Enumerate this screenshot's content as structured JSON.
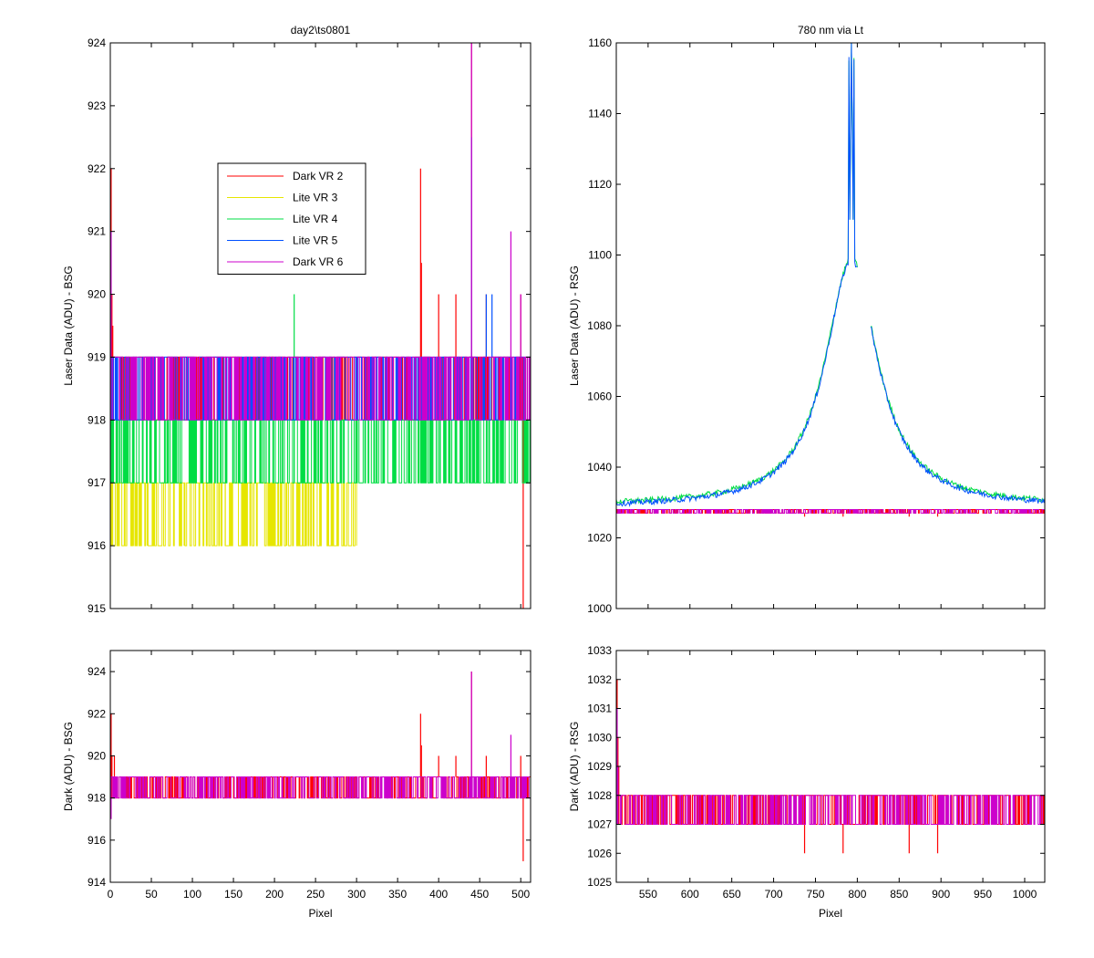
{
  "chart_data": [
    {
      "type": "line",
      "title": "day2\\ts0801",
      "ylabel": "Laser Data (ADU) - BSG",
      "xlabel": "",
      "xlim": [
        0,
        512
      ],
      "ylim": [
        915,
        924
      ],
      "xticks": [
        0,
        50,
        100,
        150,
        200,
        250,
        300,
        350,
        400,
        450,
        500
      ],
      "yticks": [
        915,
        916,
        917,
        918,
        919,
        920,
        921,
        922,
        923,
        924
      ],
      "show_xticklabels": false,
      "legend": {
        "placement": "upper-center",
        "entries": [
          {
            "label": "Dark VR 2",
            "color": "#ff0000"
          },
          {
            "label": "Lite VR 3",
            "color": "#e6e600"
          },
          {
            "label": "Lite VR 4",
            "color": "#00dd44"
          },
          {
            "label": "Lite VR 5",
            "color": "#0050ff"
          },
          {
            "label": "Dark VR 6",
            "color": "#cc00cc"
          }
        ]
      },
      "series": [
        {
          "name": "Dark VR 2",
          "color": "#ff0000",
          "kind": "flat",
          "base": 919,
          "low": 918,
          "high": 919,
          "from": 0,
          "to": 512,
          "spikes": [
            [
              1,
              922
            ],
            [
              2,
              920
            ],
            [
              3,
              919.5
            ],
            [
              378,
              922
            ],
            [
              379,
              920.5
            ],
            [
              400,
              920
            ],
            [
              421,
              920
            ],
            [
              440,
              924
            ],
            [
              458,
              920
            ],
            [
              500,
              920
            ],
            [
              503,
              915
            ]
          ]
        },
        {
          "name": "Lite VR 3",
          "color": "#e6e600",
          "kind": "flat",
          "base": 917,
          "low": 916,
          "high": 917,
          "from": 0,
          "to": 300,
          "spikes": [
            [
              10,
              916
            ],
            [
              20,
              916
            ],
            [
              28,
              916
            ],
            [
              45,
              916
            ],
            [
              90,
              916
            ],
            [
              140,
              916
            ],
            [
              160,
              916
            ],
            [
              195,
              916
            ],
            [
              215,
              916
            ],
            [
              285,
              916
            ]
          ]
        },
        {
          "name": "Lite VR 4",
          "color": "#00dd44",
          "kind": "flat",
          "base": 917,
          "low": 917,
          "high": 918,
          "from": 0,
          "to": 512,
          "spikes": [
            [
              224,
              920
            ],
            [
              378,
              918
            ],
            [
              505,
              919
            ]
          ]
        },
        {
          "name": "Lite VR 5",
          "color": "#0050ff",
          "kind": "flat",
          "base": 919,
          "low": 918,
          "high": 919,
          "from": 0,
          "to": 512,
          "spikes": [
            [
              440,
              922.5
            ],
            [
              458,
              920
            ],
            [
              465,
              920
            ]
          ]
        },
        {
          "name": "Dark VR 6",
          "color": "#cc00cc",
          "kind": "flat",
          "base": 919,
          "low": 918,
          "high": 919,
          "from": 0,
          "to": 512,
          "spikes": [
            [
              1,
              921
            ],
            [
              440,
              924
            ],
            [
              488,
              921
            ],
            [
              500,
              920
            ]
          ]
        }
      ]
    },
    {
      "type": "line",
      "title": "780 nm via Lt",
      "ylabel": "Laser Data (ADU) - RSG",
      "xlabel": "",
      "xlim": [
        512,
        1024
      ],
      "ylim": [
        1000,
        1160
      ],
      "xticks": [
        550,
        600,
        650,
        700,
        750,
        800,
        850,
        900,
        950,
        1000
      ],
      "yticks": [
        1000,
        1020,
        1040,
        1060,
        1080,
        1100,
        1120,
        1140,
        1160
      ],
      "show_xticklabels": false,
      "series": [
        {
          "name": "Dark VR 2",
          "color": "#ff0000",
          "kind": "flat",
          "base": 1027.5,
          "low": 1027,
          "high": 1028,
          "from": 512,
          "to": 1024,
          "spikes": [
            [
              737,
              1026
            ],
            [
              783,
              1026
            ],
            [
              862,
              1026
            ],
            [
              896,
              1026
            ]
          ]
        },
        {
          "name": "Dark VR 6",
          "color": "#cc00cc",
          "kind": "flat",
          "base": 1027.5,
          "low": 1027,
          "high": 1028,
          "from": 512,
          "to": 1024,
          "spikes": []
        },
        {
          "name": "Lite VR 4",
          "color": "#00dd44",
          "kind": "peak",
          "center": 793,
          "background": 1029,
          "width": 40,
          "peak": 1160,
          "gap_from": 800,
          "gap_to": 816
        },
        {
          "name": "Lite VR 5",
          "color": "#0050ff",
          "kind": "peak",
          "center": 793,
          "background": 1028.5,
          "width": 40,
          "peak": 1160,
          "gap_from": 800,
          "gap_to": 816
        }
      ]
    },
    {
      "type": "line",
      "title": "",
      "ylabel": "Dark (ADU) - BSG",
      "xlabel": "Pixel",
      "xlim": [
        0,
        512
      ],
      "ylim": [
        914,
        925
      ],
      "xticks": [
        0,
        50,
        100,
        150,
        200,
        250,
        300,
        350,
        400,
        450,
        500
      ],
      "yticks": [
        914,
        916,
        918,
        920,
        922,
        924
      ],
      "show_xticklabels": true,
      "series": [
        {
          "name": "Dark VR 2",
          "color": "#ff0000",
          "kind": "flat",
          "base": 919,
          "low": 918,
          "high": 919,
          "from": 0,
          "to": 512,
          "spikes": [
            [
              1,
              922
            ],
            [
              2,
              920
            ],
            [
              5,
              920
            ],
            [
              378,
              922
            ],
            [
              379,
              920.5
            ],
            [
              400,
              920
            ],
            [
              421,
              920
            ],
            [
              440,
              924
            ],
            [
              458,
              920
            ],
            [
              500,
              920
            ],
            [
              503,
              915
            ]
          ]
        },
        {
          "name": "Dark VR 6",
          "color": "#cc00cc",
          "kind": "flat",
          "base": 919,
          "low": 918,
          "high": 919,
          "from": 0,
          "to": 512,
          "spikes": [
            [
              1,
              917
            ],
            [
              425,
              918
            ],
            [
              440,
              924
            ],
            [
              488,
              921
            ]
          ]
        }
      ]
    },
    {
      "type": "line",
      "title": "",
      "ylabel": "Dark (ADU) - RSG",
      "xlabel": "Pixel",
      "xlim": [
        512,
        1024
      ],
      "ylim": [
        1025,
        1033
      ],
      "xticks": [
        550,
        600,
        650,
        700,
        750,
        800,
        850,
        900,
        950,
        1000
      ],
      "yticks": [
        1025,
        1026,
        1027,
        1028,
        1029,
        1030,
        1031,
        1032,
        1033
      ],
      "show_xticklabels": true,
      "series": [
        {
          "name": "Dark VR 2",
          "color": "#ff0000",
          "kind": "flat",
          "base": 1027.5,
          "low": 1027,
          "high": 1028,
          "from": 512,
          "to": 1024,
          "spikes": [
            [
              513,
              1032
            ],
            [
              514,
              1030
            ],
            [
              515,
              1029
            ],
            [
              737,
              1026
            ],
            [
              783,
              1026
            ],
            [
              862,
              1026
            ],
            [
              896,
              1026
            ]
          ]
        },
        {
          "name": "Dark VR 6",
          "color": "#cc00cc",
          "kind": "flat",
          "base": 1027.5,
          "low": 1027,
          "high": 1028,
          "from": 512,
          "to": 1024,
          "spikes": [
            [
              513,
              1031
            ],
            [
              514,
              1029
            ]
          ]
        }
      ]
    }
  ]
}
